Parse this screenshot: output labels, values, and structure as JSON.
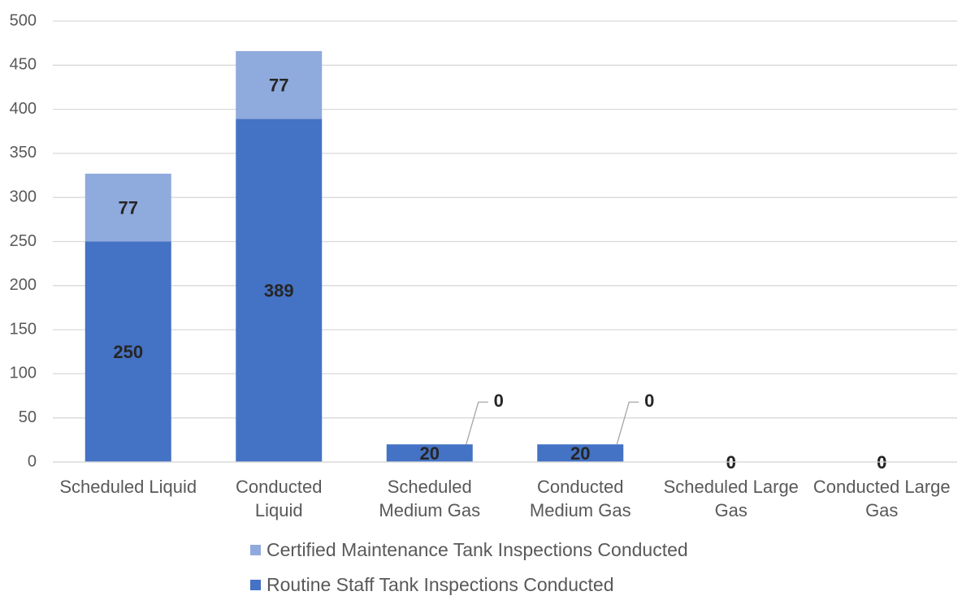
{
  "chart_data": {
    "type": "stacked_bar",
    "categories": [
      "Scheduled Liquid",
      "Conducted Liquid",
      "Scheduled Medium Gas",
      "Conducted Medium Gas",
      "Scheduled Large Gas",
      "Conducted Large Gas"
    ],
    "series": [
      {
        "name": "Routine Staff Tank Inspections Conducted",
        "color": "#4472c4",
        "values": [
          250,
          389,
          20,
          20,
          0,
          0
        ]
      },
      {
        "name": "Certified Maintenance Tank Inspections Conducted",
        "color": "#8faadc",
        "values": [
          77,
          77,
          0,
          0,
          0,
          0
        ]
      }
    ],
    "ylim": [
      0,
      500
    ],
    "yticks": [
      0,
      50,
      100,
      150,
      200,
      250,
      300,
      350,
      400,
      450,
      500
    ],
    "grid": true,
    "legend": "bottom"
  }
}
